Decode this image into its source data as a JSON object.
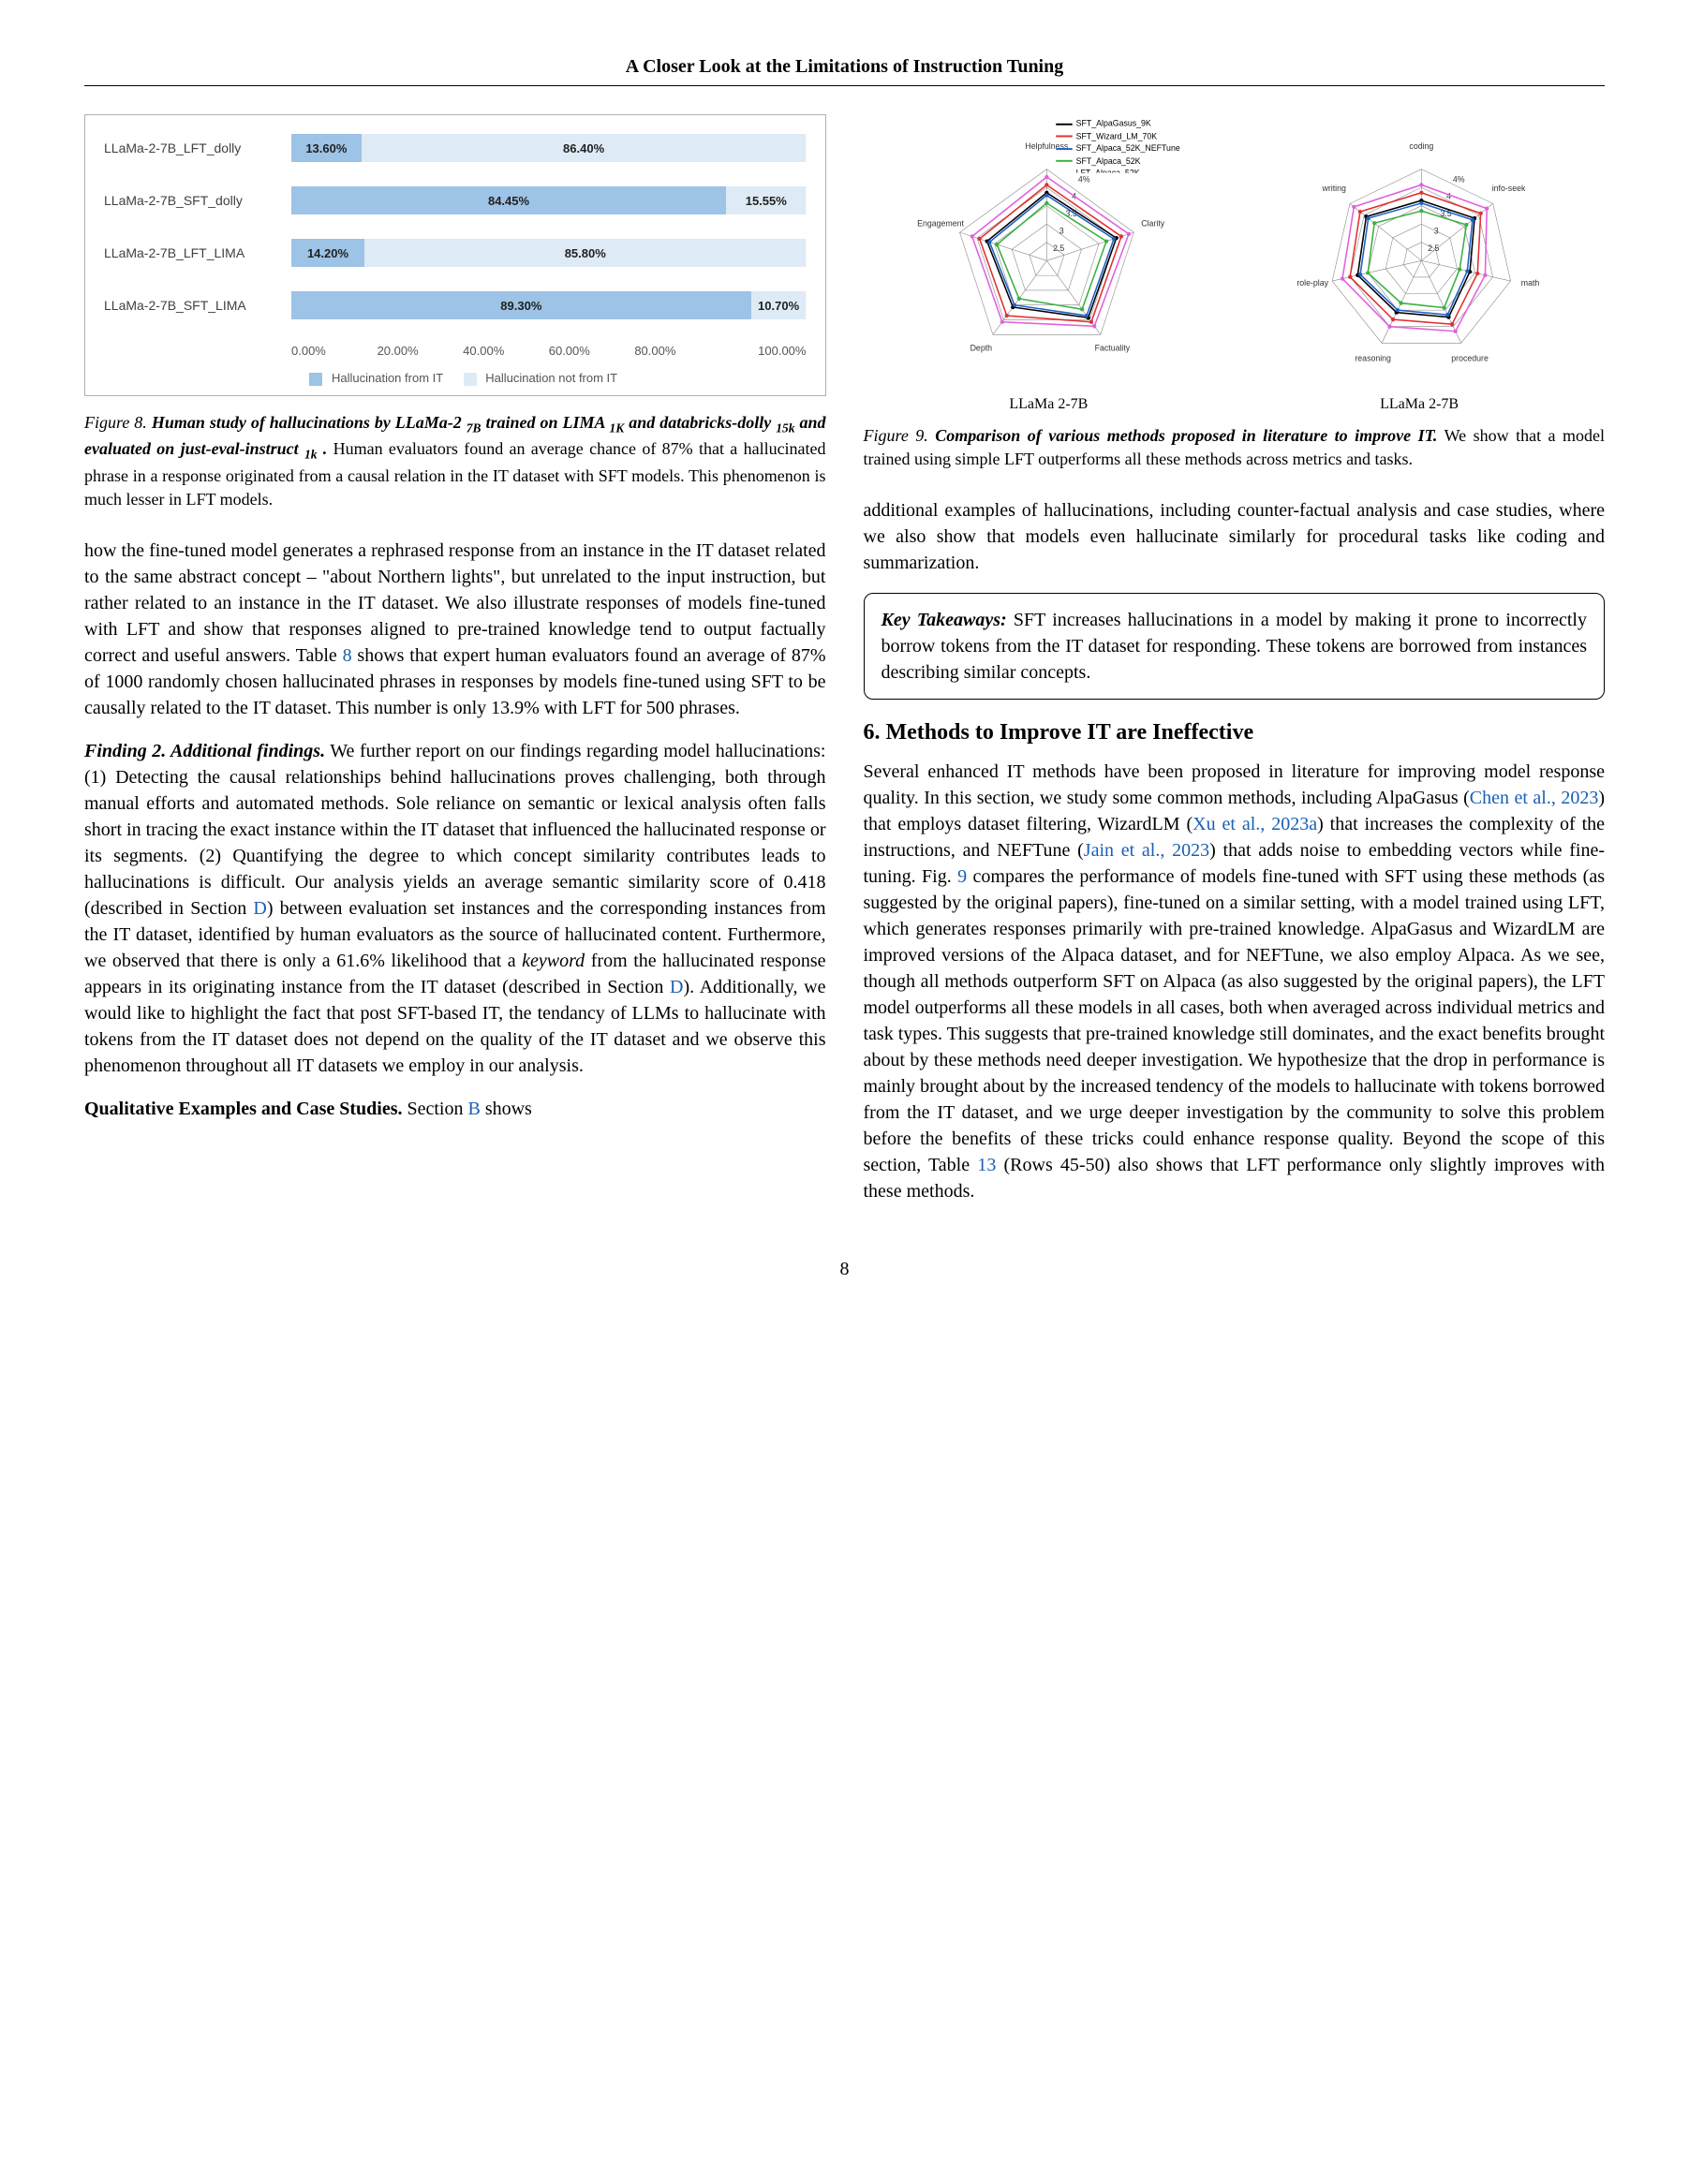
{
  "header": {
    "title": "A Closer Look at the Limitations of Instruction Tuning"
  },
  "bar_chart": {
    "type": "stacked-bar-horizontal",
    "background": "#ffffff",
    "border_color": "#b0b0b0",
    "series_colors": {
      "from_it": "#9dc3e6",
      "not_from_it": "#deebf6"
    },
    "label_font": "Arial 14px",
    "value_font": "Arial 13px bold",
    "xlim": [
      0,
      100
    ],
    "xtick_step": 20,
    "xticks": [
      "0.00%",
      "20.00%",
      "40.00%",
      "60.00%",
      "80.00%",
      "100.00%"
    ],
    "rows": [
      {
        "label": "LLaMa-2-7B_LFT_dolly",
        "from_it": 13.6,
        "not_from_it": 86.4,
        "from_it_txt": "13.60%",
        "not_from_it_txt": "86.40%"
      },
      {
        "label": "LLaMa-2-7B_SFT_dolly",
        "from_it": 84.45,
        "not_from_it": 15.55,
        "from_it_txt": "84.45%",
        "not_from_it_txt": "15.55%"
      },
      {
        "label": "LLaMa-2-7B_LFT_LIMA",
        "from_it": 14.2,
        "not_from_it": 85.8,
        "from_it_txt": "14.20%",
        "not_from_it_txt": "85.80%"
      },
      {
        "label": "LLaMa-2-7B_SFT_LIMA",
        "from_it": 89.3,
        "not_from_it": 10.7,
        "from_it_txt": "89.30%",
        "not_from_it_txt": "10.70%"
      }
    ],
    "legend": {
      "a": "Hallucination from IT",
      "b": "Hallucination not from IT"
    }
  },
  "figure8": {
    "num": "Figure 8.",
    "bold": "Human study of hallucinations by LLaMa-2 ",
    "sub1": "7B",
    "bold2": " trained on LIMA ",
    "sub2": "1K",
    "bold3": " and databricks-dolly ",
    "sub3": "15k",
    "bold4": " and evaluated on just-eval-instruct ",
    "sub4": "1k",
    "bold5": " .",
    "rest": " Human evaluators found an average chance of 87% that a hallucinated phrase in a response originated from a causal relation in the IT dataset with SFT models. This phenomenon is much lesser in LFT models."
  },
  "radar": {
    "type": "radar",
    "panels": [
      "LLaMa 2-7B",
      "LLaMa 2-7B"
    ],
    "ring_count": 5,
    "grid_color": "#888888",
    "background": "#ffffff",
    "left": {
      "axes": [
        "Helpfulness",
        "Clarity",
        "Factuality",
        "Depth",
        "Engagement"
      ],
      "tick_labels": [
        "1",
        "2.5",
        "3",
        "3.5",
        "4",
        "4%"
      ],
      "series": [
        {
          "name": "SFT_AlpaGasus_9K",
          "color": "#000000",
          "values": [
            3.6,
            3.8,
            3.7,
            3.2,
            3.4
          ]
        },
        {
          "name": "SFT_Wizard_LM_70K",
          "color": "#e03030",
          "values": [
            3.9,
            4.0,
            3.9,
            3.6,
            3.7
          ]
        },
        {
          "name": "SFT_Alpaca_52K_NEFTune",
          "color": "#1f60c4",
          "values": [
            3.5,
            3.7,
            3.6,
            3.1,
            3.3
          ]
        },
        {
          "name": "SFT_Alpaca_52K",
          "color": "#3cb043",
          "values": [
            3.2,
            3.4,
            3.3,
            2.8,
            3.0
          ]
        },
        {
          "name": "LFT_Alpaca_52K",
          "color": "#e060e0",
          "values": [
            4.2,
            4.3,
            4.1,
            3.9,
            4.0
          ]
        }
      ]
    },
    "right": {
      "axes": [
        "coding",
        "info-seek",
        "math",
        "procedure",
        "reasoning",
        "role-play",
        "writing"
      ],
      "tick_labels": [
        "1",
        "2.5",
        "3",
        "3.5",
        "4",
        "4%"
      ],
      "series": [
        {
          "name": "SFT_AlpaGasus_9K",
          "color": "#000000",
          "values": [
            3.3,
            3.6,
            2.9,
            3.4,
            3.2,
            3.5,
            3.7
          ]
        },
        {
          "name": "SFT_Wizard_LM_70K",
          "color": "#e03030",
          "values": [
            3.6,
            3.9,
            3.2,
            3.7,
            3.5,
            3.8,
            4.0
          ]
        },
        {
          "name": "SFT_Alpaca_52K_NEFTune",
          "color": "#1f60c4",
          "values": [
            3.2,
            3.5,
            2.8,
            3.3,
            3.1,
            3.4,
            3.6
          ]
        },
        {
          "name": "SFT_Alpaca_52K",
          "color": "#3cb043",
          "values": [
            2.9,
            3.2,
            2.5,
            3.0,
            2.8,
            3.1,
            3.3
          ]
        },
        {
          "name": "LFT_Alpaca_52K",
          "color": "#e060e0",
          "values": [
            3.9,
            4.2,
            3.5,
            4.0,
            3.8,
            4.1,
            4.3
          ]
        }
      ]
    },
    "legend_items": [
      {
        "label": "SFT_AlpaGasus_9K",
        "color": "#000000"
      },
      {
        "label": "SFT_Wizard_LM_70K",
        "color": "#e03030"
      },
      {
        "label": "SFT_Alpaca_52K_NEFTune",
        "color": "#1f60c4"
      },
      {
        "label": "SFT_Alpaca_52K",
        "color": "#3cb043"
      },
      {
        "label": "LFT_Alpaca_52K",
        "color": "#e060e0"
      }
    ]
  },
  "figure9": {
    "num": "Figure 9.",
    "bold": "Comparison of various methods proposed in literature to improve IT.",
    "rest": " We show that a model trained using simple LFT outperforms all these methods across metrics and tasks."
  },
  "left_para1": "how the fine-tuned model generates a rephrased response from an instance in the IT dataset related to the same abstract concept – \"about Northern lights\", but unrelated to the input instruction, but rather related to an instance in the IT dataset. We also illustrate responses of models fine-tuned with LFT and show that responses aligned to pre-trained knowledge tend to output factually correct and useful answers. Table ",
  "left_para1_ref1": "8",
  "left_para1b": " shows that expert human evaluators found an average of 87% of 1000 randomly chosen hallucinated phrases in responses by models fine-tuned using SFT to be causally related to the IT dataset. This number is only 13.9% with LFT for 500 phrases.",
  "finding2_head": "Finding 2. Additional findings.",
  "finding2_body": " We further report on our findings regarding model hallucinations: (1) Detecting the causal relationships behind hallucinations proves challenging, both through manual efforts and automated methods. Sole reliance on semantic or lexical analysis often falls short in tracing the exact instance within the IT dataset that influenced the hallucinated response or its segments. (2) Quantifying the degree to which concept similarity contributes leads to hallucinations is difficult. Our analysis yields an average semantic similarity score of 0.418 (described in Section ",
  "finding2_ref1": "D",
  "finding2_body2": ") between evaluation set instances and the corresponding instances from the IT dataset, identified by human evaluators as the source of hallucinated content. Furthermore, we observed that there is only a 61.6% likelihood that a ",
  "finding2_ital": "keyword",
  "finding2_body3": " from the hallucinated response appears in its originating instance from the IT dataset (described in Section ",
  "finding2_ref2": "D",
  "finding2_body4": "). Additionally, we would like to highlight the fact that post SFT-based IT, the tendancy of LLMs to hallucinate with tokens from the IT dataset does not depend on the quality of the IT dataset and we observe this phenomenon throughout all IT datasets we employ in our analysis.",
  "qual_head": "Qualitative Examples and Case Studies.",
  "qual_body": " Section ",
  "qual_ref": "B",
  "qual_body2": " shows",
  "right_para1": "additional examples of hallucinations, including counter-factual analysis and case studies, where we also show that models even hallucinate similarly for procedural tasks like coding and summarization.",
  "key_box": {
    "head": "Key Takeaways:",
    "body": " SFT increases hallucinations in a model by making it prone to incorrectly borrow tokens from the IT dataset for responding. These tokens are borrowed from instances describing similar concepts."
  },
  "section6": {
    "heading": "6. Methods to Improve IT are Ineffective",
    "p1a": "Several enhanced IT methods have been proposed in literature for improving model response quality. In this section, we study some common methods, including AlpaGasus (",
    "ref1": "Chen et al., 2023",
    "p1b": ") that employs dataset filtering, WizardLM (",
    "ref2": "Xu et al., 2023a",
    "p1c": ") that increases the complexity of the instructions, and NEFTune (",
    "ref3": "Jain et al., 2023",
    "p1d": ") that adds noise to embedding vectors while fine-tuning. Fig. ",
    "ref4": "9",
    "p1e": " compares the performance of models fine-tuned with SFT using these methods (as suggested by the original papers), fine-tuned on a similar setting, with a model trained using LFT, which generates responses primarily with pre-trained knowledge. AlpaGasus and WizardLM are improved versions of the Alpaca dataset, and for NEFTune, we also employ Alpaca. As we see, though all methods outperform SFT on Alpaca (as also suggested by the original papers), the LFT model outperforms all these models in all cases, both when averaged across individual metrics and task types. This suggests that pre-trained knowledge still dominates, and the exact benefits brought about by these methods need deeper investigation. We hypothesize that the drop in performance is mainly brought about by the increased tendency of the models to hallucinate with tokens borrowed from the IT dataset, and we urge deeper investigation by the community to solve this problem before the benefits of these tricks could enhance response quality. Beyond the scope of this section, Table ",
    "ref5": "13",
    "p1f": " (Rows 45-50) also shows that LFT performance only slightly improves with these methods."
  },
  "page_number": "8"
}
